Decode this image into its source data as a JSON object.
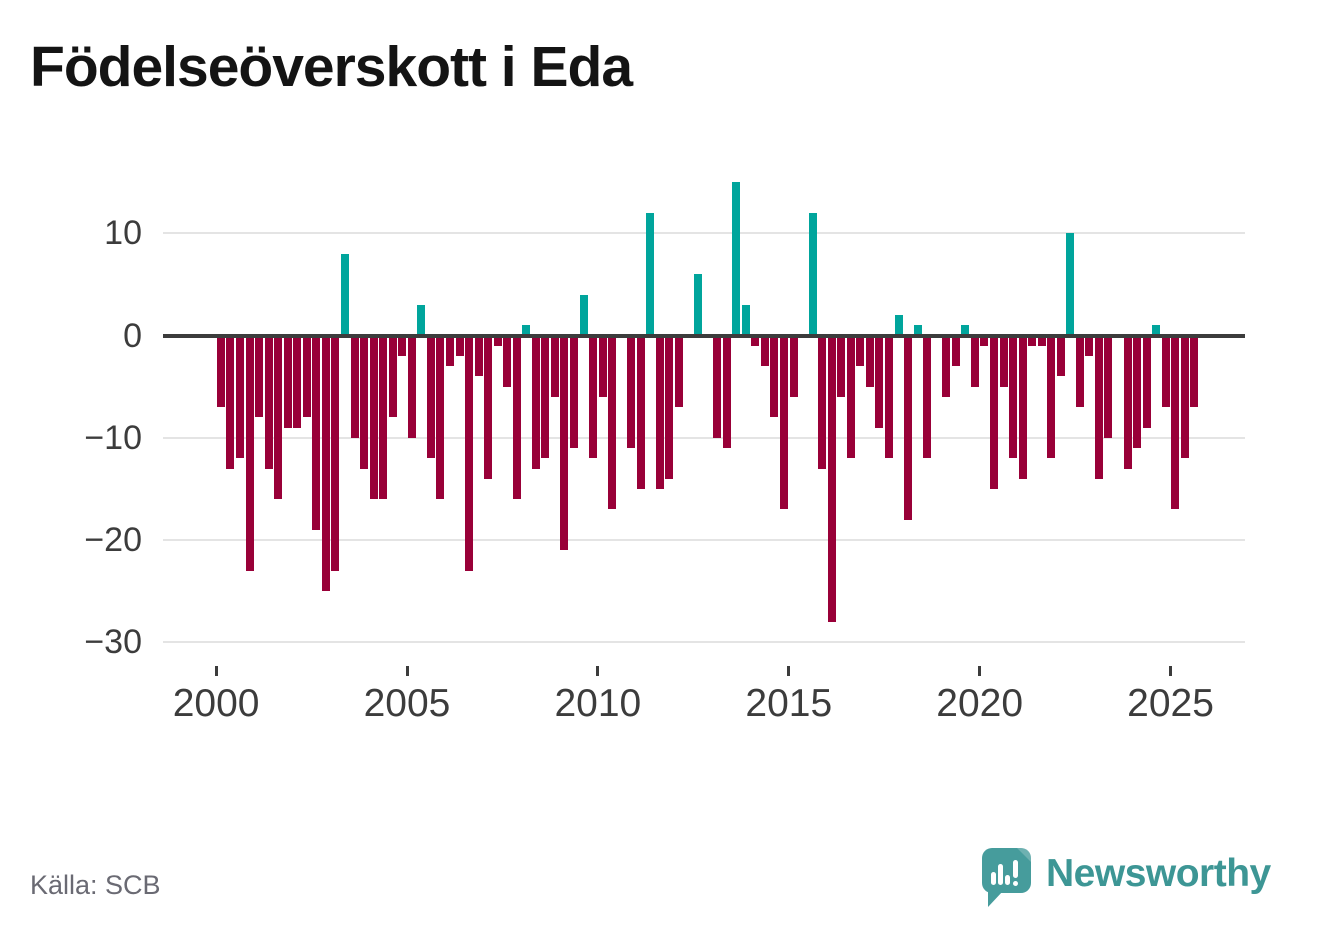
{
  "title": "Födelseöverskott i Eda",
  "source_note": "Källa: SCB",
  "branding": {
    "wordmark": "Newsworthy",
    "logo_icon": "speech-bubble-bar-chart-icon"
  },
  "chart_data": {
    "type": "bar",
    "title": "Födelseöverskott i Eda",
    "xlabel": "",
    "ylabel": "",
    "frequency": "quarterly",
    "x_start": "2000-Q1",
    "x_end": "2025-Q3",
    "x_step_years": 0.25,
    "values": [
      -7,
      -13,
      -12,
      -23,
      -8,
      -13,
      -16,
      -9,
      -9,
      -8,
      -19,
      -25,
      -23,
      8,
      -10,
      -13,
      -16,
      -16,
      -8,
      -2,
      -10,
      3,
      -12,
      -16,
      -3,
      -2,
      -23,
      -4,
      -14,
      -1,
      -5,
      -16,
      1,
      -13,
      -12,
      -6,
      -21,
      -11,
      4,
      -12,
      -6,
      -17,
      0,
      -11,
      -15,
      12,
      -15,
      -14,
      -7,
      0,
      6,
      0,
      -10,
      -11,
      15,
      3,
      -1,
      -3,
      -8,
      -17,
      -6,
      0,
      12,
      -13,
      -28,
      -6,
      -12,
      -3,
      -5,
      -9,
      -12,
      2,
      -18,
      1,
      -12,
      0,
      -6,
      -3,
      1,
      -5,
      -1,
      -15,
      -5,
      -12,
      -14,
      -1,
      -1,
      -12,
      -4,
      10,
      -7,
      -2,
      -14,
      -10,
      0,
      -13,
      -11,
      -9,
      1,
      -7,
      -17,
      -12,
      -7
    ],
    "y_tick_values": [
      10,
      0,
      -10,
      -20,
      -30
    ],
    "y_tick_labels": [
      "10",
      "0",
      "−10",
      "−20",
      "−30"
    ],
    "x_tick_values": [
      2000,
      2005,
      2010,
      2015,
      2020,
      2025
    ],
    "x_tick_labels": [
      "2000",
      "2005",
      "2010",
      "2015",
      "2020",
      "2025"
    ],
    "ylim": [
      -32,
      16
    ],
    "grid": "horizontal",
    "legend": "none",
    "colors": {
      "positive": "#00a59c",
      "negative": "#990038",
      "zero_line": "#3c3c3c",
      "gridline": "#e4e4e4",
      "tick_text": "#3c3c3c"
    }
  }
}
